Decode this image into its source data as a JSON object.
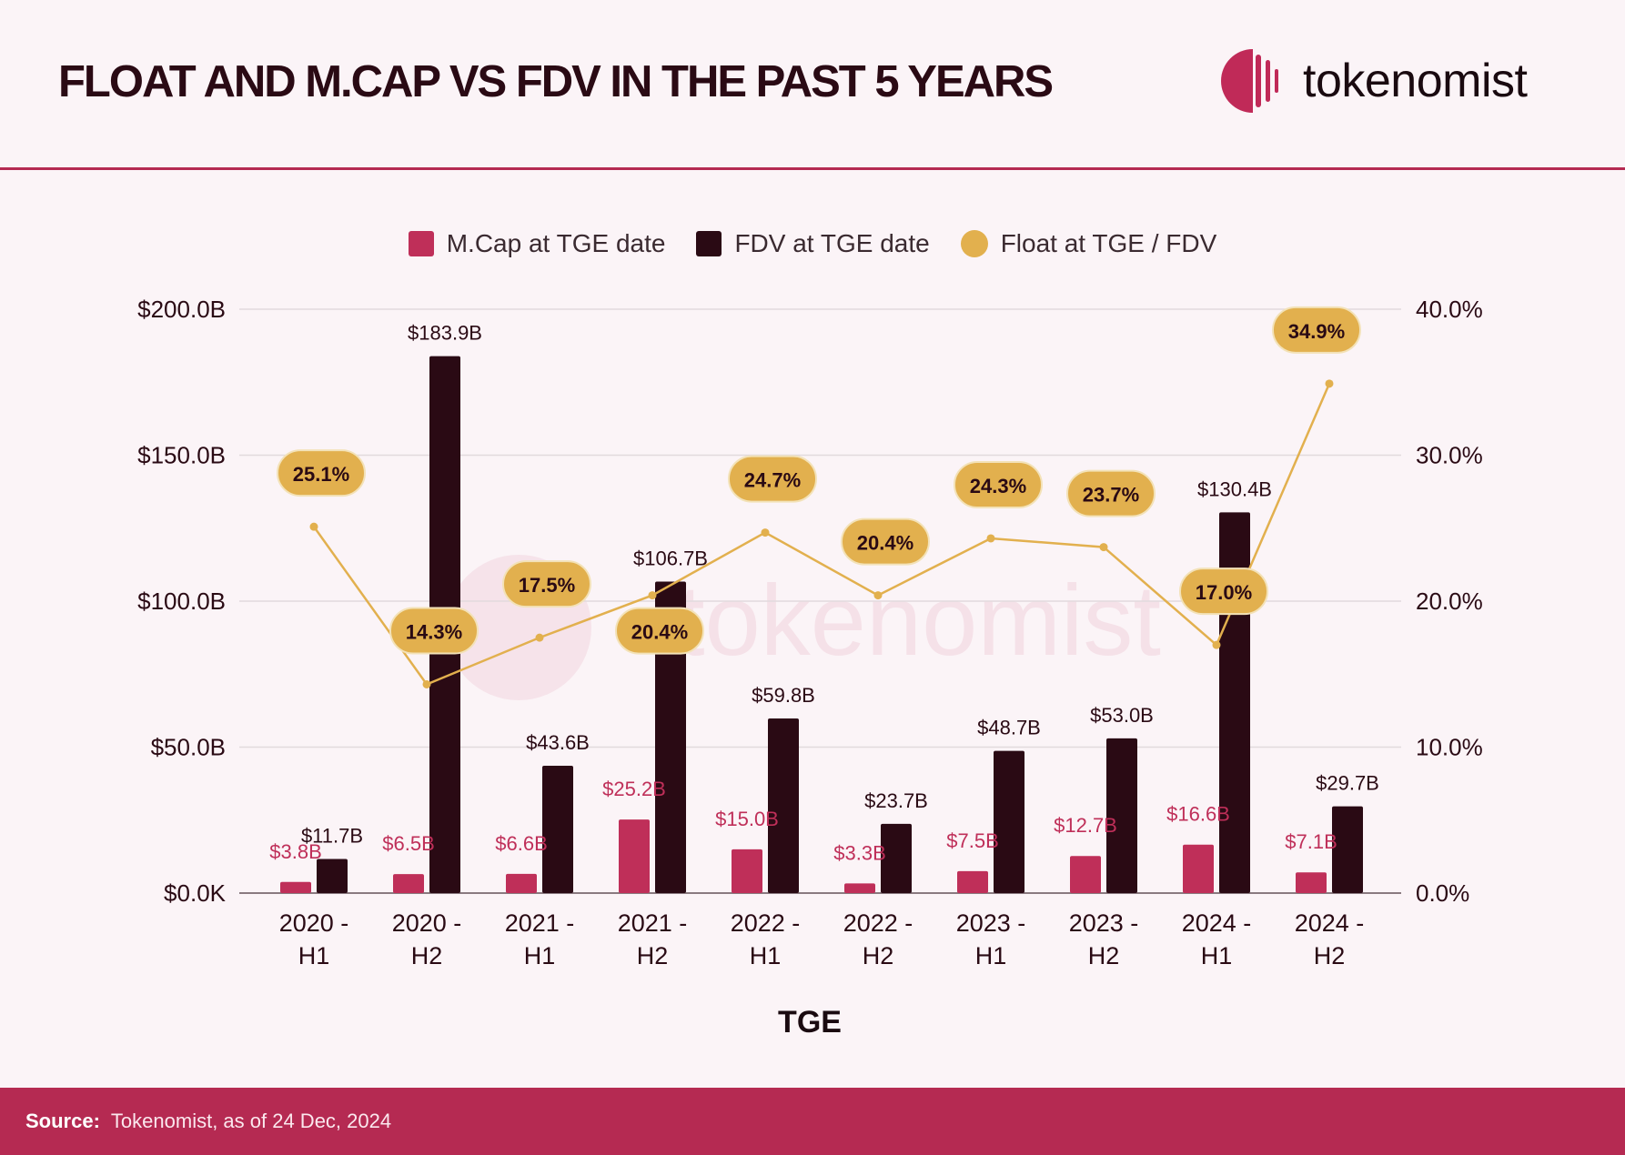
{
  "header": {
    "title": "FLOAT AND M.CAP VS FDV IN THE PAST 5 YEARS",
    "logo_text": "tokenomist"
  },
  "watermark": "tokenomist",
  "footer": {
    "source_label": "Source:",
    "source_text": "Tokenomist, as of 24 Dec, 2024"
  },
  "colors": {
    "mcap": "#bf2f59",
    "fdv": "#2a0a14",
    "float": "#e2b04e",
    "background": "#fbf4f7",
    "footer": "#b52a52"
  },
  "chart_data": {
    "type": "bar",
    "title": "FLOAT AND M.CAP VS FDV IN THE PAST 5 YEARS",
    "xlabel": "TGE",
    "categories": [
      [
        "2020 -",
        "H1"
      ],
      [
        "2020 -",
        "H2"
      ],
      [
        "2021 -",
        "H1"
      ],
      [
        "2021 -",
        "H2"
      ],
      [
        "2022 -",
        "H1"
      ],
      [
        "2022 -",
        "H2"
      ],
      [
        "2023 -",
        "H1"
      ],
      [
        "2023 -",
        "H2"
      ],
      [
        "2024 -",
        "H1"
      ],
      [
        "2024 -",
        "H2"
      ]
    ],
    "y_left": {
      "ylim": [
        0,
        200
      ],
      "unit": "B USD",
      "ticks": [
        "$0.0K",
        "$50.0B",
        "$100.0B",
        "$150.0B",
        "$200.0B"
      ]
    },
    "y_right": {
      "ylim": [
        0,
        40
      ],
      "unit": "%",
      "ticks": [
        "0.0%",
        "10.0%",
        "20.0%",
        "30.0%",
        "40.0%"
      ]
    },
    "grid": true,
    "legend_position": "top",
    "series": [
      {
        "name": "M.Cap at TGE date",
        "type": "bar",
        "axis": "left",
        "values": [
          3.8,
          6.5,
          6.6,
          25.2,
          15.0,
          3.3,
          7.5,
          12.7,
          16.6,
          7.1
        ],
        "labels": [
          "$3.8B",
          "$6.5B",
          "$6.6B",
          "$25.2B",
          "$15.0B",
          "$3.3B",
          "$7.5B",
          "$12.7B",
          "$16.6B",
          "$7.1B"
        ]
      },
      {
        "name": "FDV at TGE date",
        "type": "bar",
        "axis": "left",
        "values": [
          11.7,
          183.9,
          43.6,
          106.7,
          59.8,
          23.7,
          48.7,
          53.0,
          130.4,
          29.7
        ],
        "labels": [
          "$11.7B",
          "$183.9B",
          "$43.6B",
          "$106.7B",
          "$59.8B",
          "$23.7B",
          "$48.7B",
          "$53.0B",
          "$130.4B",
          "$29.7B"
        ]
      },
      {
        "name": "Float at TGE / FDV",
        "type": "line",
        "axis": "right",
        "values": [
          25.1,
          14.3,
          17.5,
          20.4,
          24.7,
          20.4,
          24.3,
          23.7,
          17.0,
          34.9
        ],
        "labels": [
          "25.1%",
          "14.3%",
          "17.5%",
          "20.4%",
          "24.7%",
          "20.4%",
          "24.3%",
          "23.7%",
          "17.0%",
          "34.9%"
        ]
      }
    ]
  }
}
